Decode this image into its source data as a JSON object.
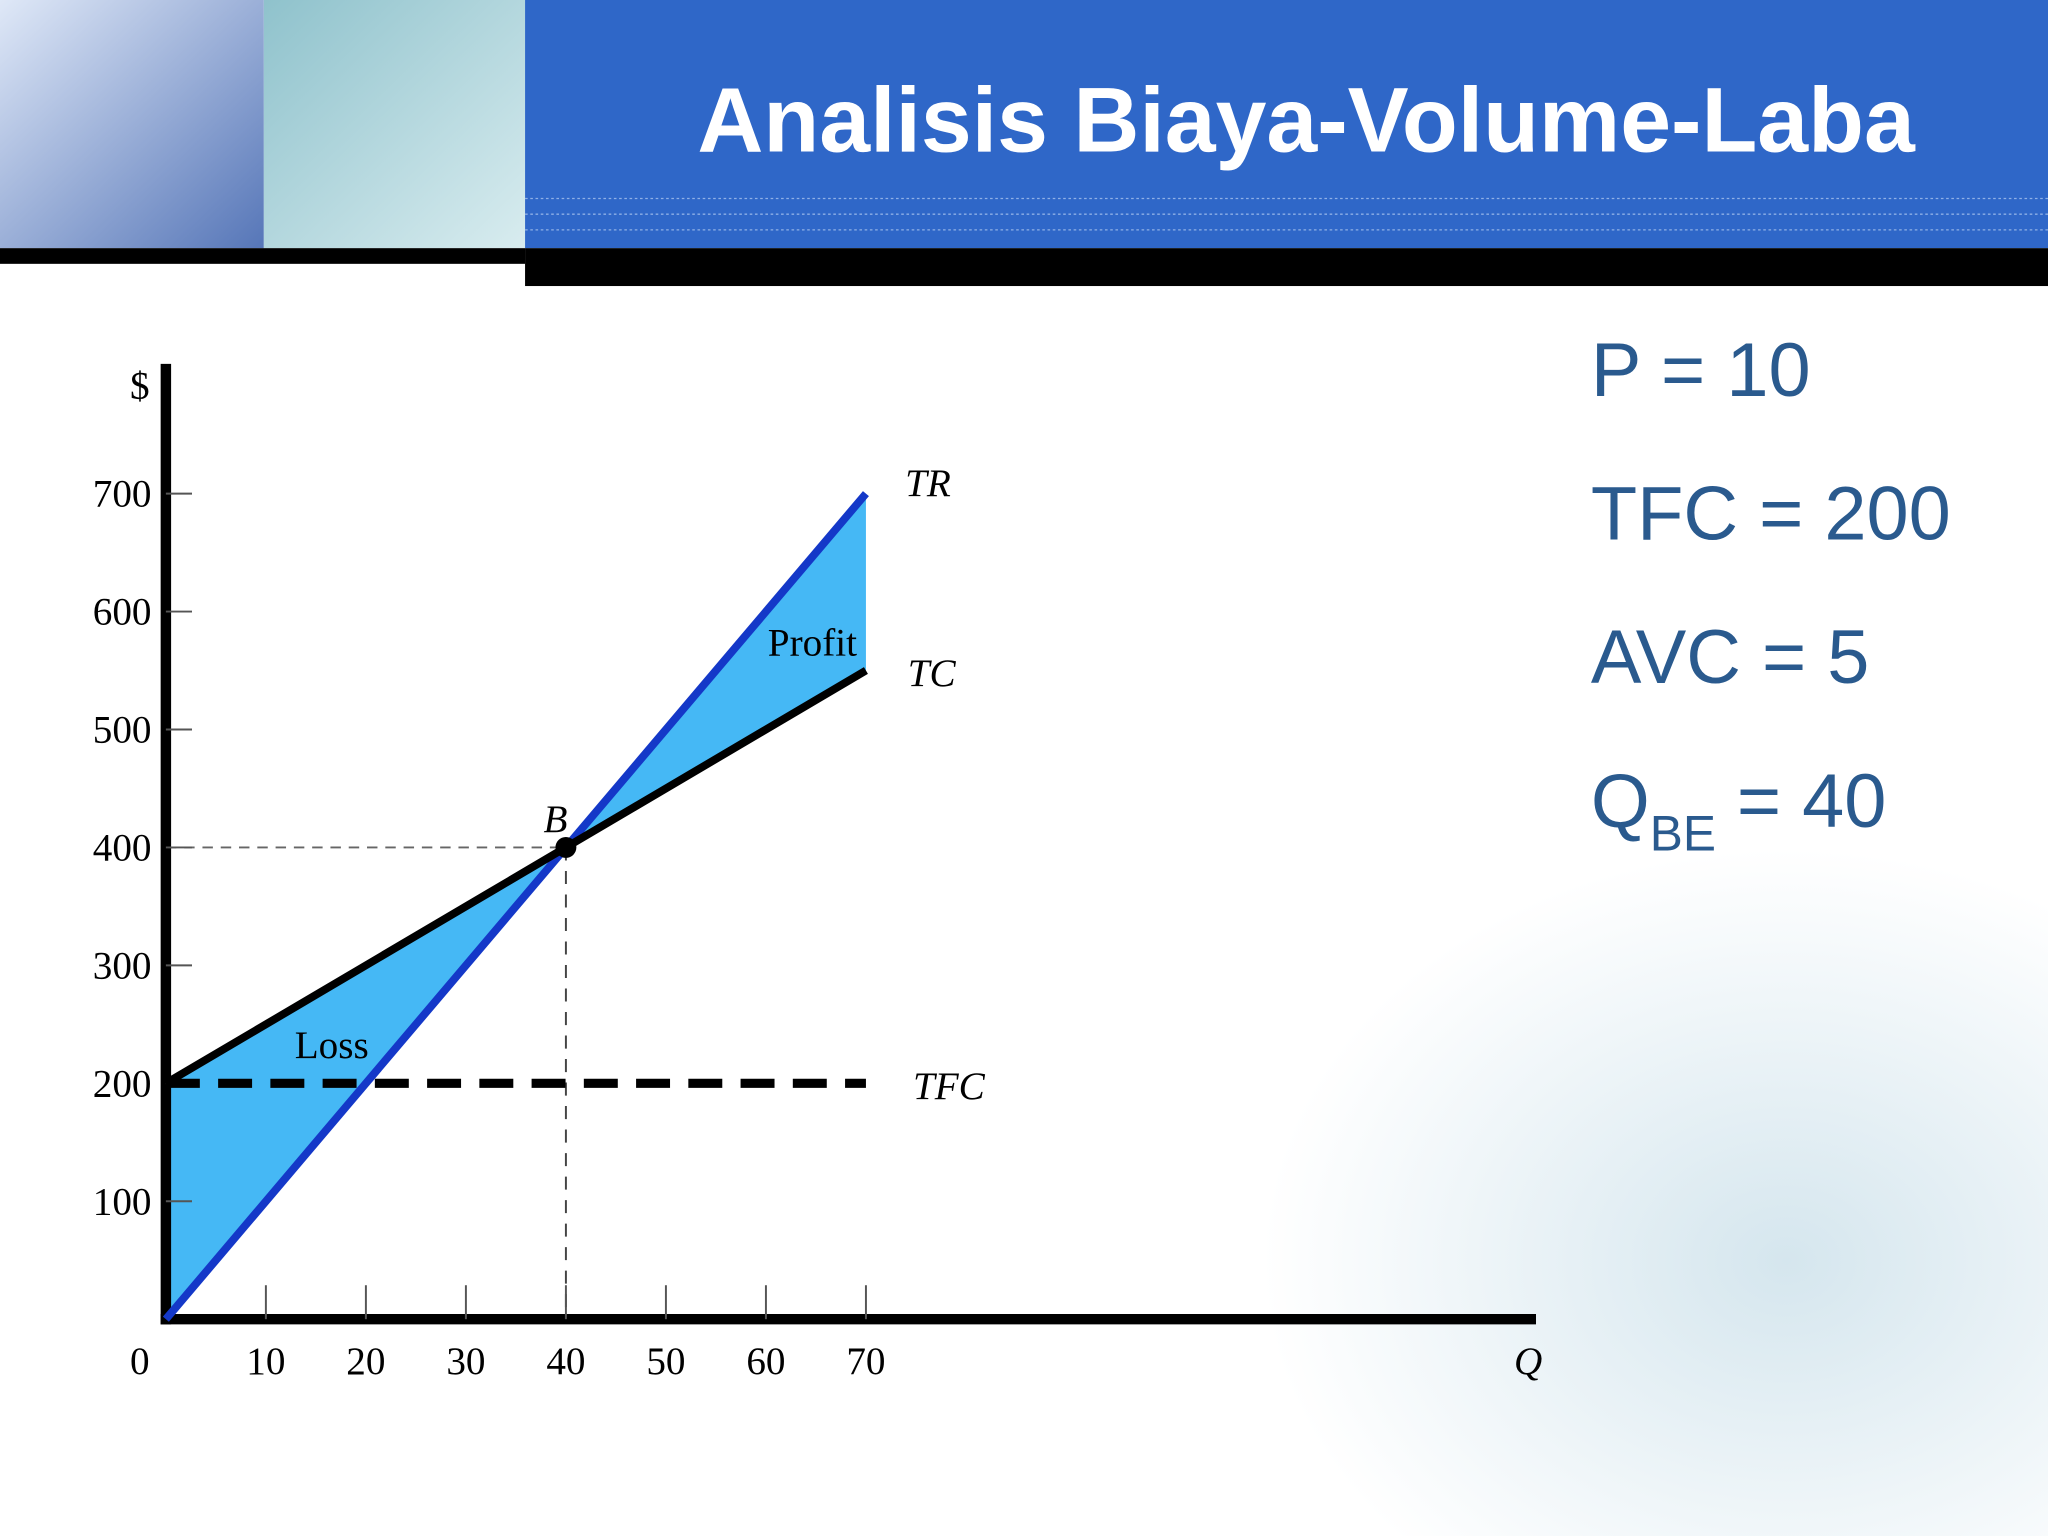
{
  "slide": {
    "title": "Analisis Biaya-Volume-Laba",
    "params": [
      {
        "text": "P = 10"
      },
      {
        "text": "TFC = 200"
      },
      {
        "text": "AVC = 5"
      },
      {
        "main": "Q",
        "sub": "BE",
        "rest": "= 40"
      }
    ]
  },
  "chart_data": {
    "type": "line",
    "x": [
      0,
      40,
      70
    ],
    "series": [
      {
        "name": "TR",
        "color": "#1438c8",
        "values": [
          0,
          400,
          700
        ]
      },
      {
        "name": "TC",
        "color": "#000000",
        "values": [
          200,
          400,
          550
        ]
      },
      {
        "name": "TFC",
        "color": "#000000",
        "dashed": true,
        "values": [
          200,
          200,
          200
        ]
      }
    ],
    "fill_color": "#45b8f5",
    "break_even": {
      "label": "B",
      "x": 40,
      "y": 400
    },
    "loss_label": "Loss",
    "profit_label": "Profit",
    "xlabel": "Q",
    "ylabel": "$",
    "xlim": [
      0,
      137
    ],
    "ylim": [
      0,
      810
    ],
    "xticks": [
      0,
      10,
      20,
      30,
      40,
      50,
      60,
      70
    ],
    "yticks": [
      100,
      200,
      300,
      400,
      500,
      600,
      700
    ]
  }
}
